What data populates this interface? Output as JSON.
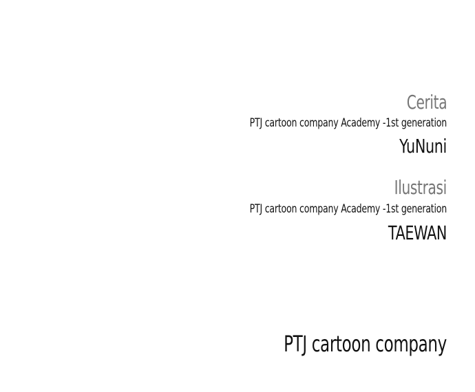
{
  "story": {
    "role": "Cerita",
    "affiliation": "PTJ cartoon company Academy -1st generation",
    "name": "YuNuni"
  },
  "illustration": {
    "role": "Ilustrasi",
    "affiliation": "PTJ cartoon company Academy -1st generation",
    "name": "TAEWAN"
  },
  "publisher": {
    "name": "PTJ cartoon company"
  }
}
